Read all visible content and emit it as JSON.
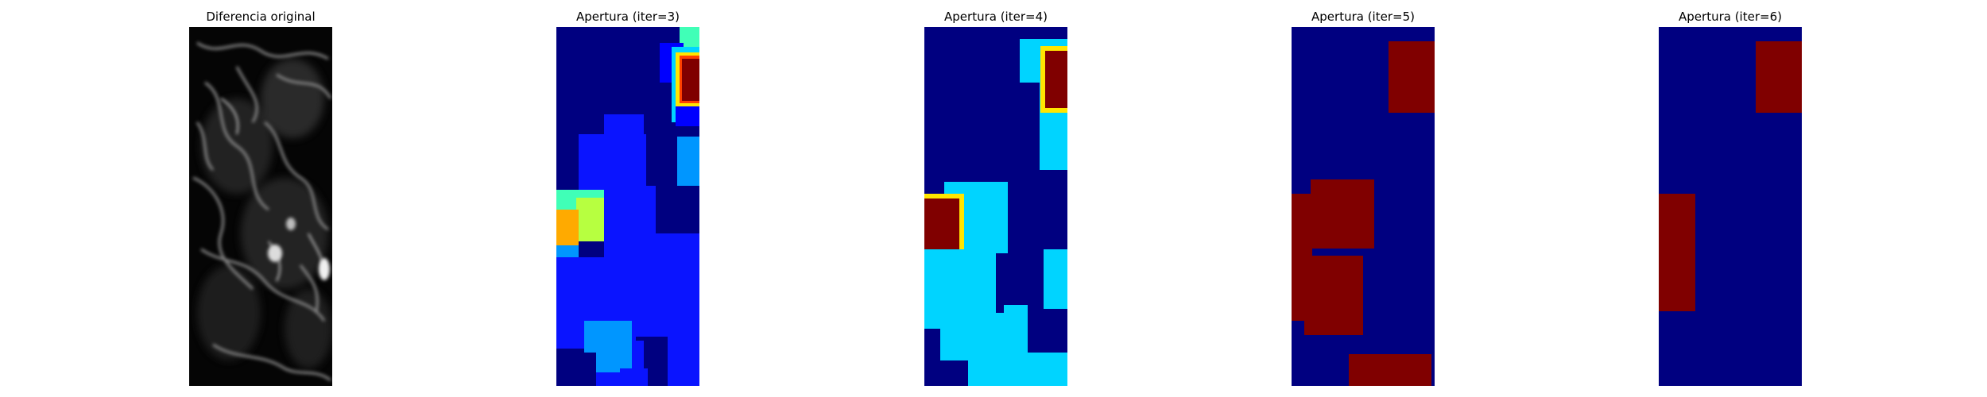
{
  "panels": [
    {
      "title": "Diferencia original",
      "colormap": "gray",
      "image": "grayscale difference map"
    },
    {
      "title": "Apertura (iter=3)",
      "colormap": "jet",
      "image": "multi-level opening map"
    },
    {
      "title": "Apertura (iter=4)",
      "colormap": "jet",
      "image": "multi-level opening map"
    },
    {
      "title": "Apertura (iter=5)",
      "colormap": "jet",
      "image": "binary opening map"
    },
    {
      "title": "Apertura (iter=6)",
      "colormap": "jet",
      "image": "binary opening map"
    }
  ],
  "colors": {
    "jet_dark_blue": "#000080",
    "jet_blue": "#0a14ff",
    "jet_blue_2": "#0000ff",
    "jet_mid_blue": "#0096ff",
    "jet_cyan": "#00d4ff",
    "jet_teal": "#40ffb7",
    "jet_lime": "#b7ff40",
    "jet_yellow": "#ffe600",
    "jet_orange": "#ffaa00",
    "jet_dark_red": "#800000"
  }
}
